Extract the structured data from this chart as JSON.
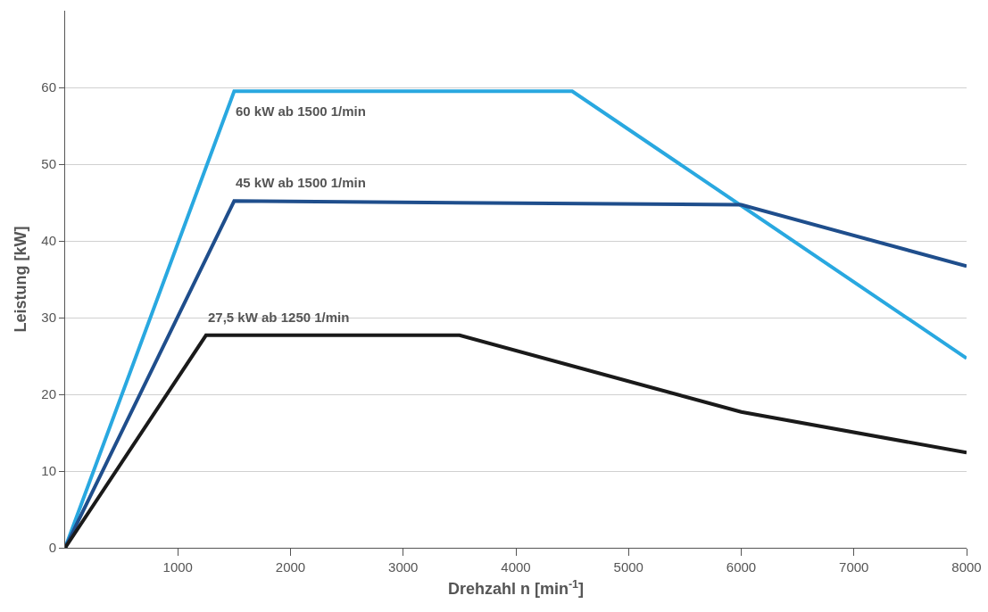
{
  "chart_data": {
    "type": "line",
    "xlabel": "Drehzahl n [min$^{-1}$]",
    "ylabel": "Leistung [kW]",
    "series": [
      {
        "color": "#29a8e0",
        "x": [
          0,
          1500,
          4500,
          8000
        ],
        "values": [
          0,
          59.5,
          59.5,
          24.7
        ]
      },
      {
        "color": "#1f4e8c",
        "x": [
          0,
          1500,
          6000,
          8000
        ],
        "values": [
          0,
          45.2,
          44.7,
          36.7
        ]
      },
      {
        "color": "#1a1a1a",
        "x": [
          0,
          1250,
          3500,
          6000,
          8000
        ],
        "values": [
          0,
          27.7,
          27.7,
          17.7,
          12.4
        ]
      }
    ],
    "annotations": [
      "60 kW ab 1500 1/min",
      "45 kW ab 1500 1/min",
      "27,5 kW ab 1250 1/min"
    ],
    "xlim": [
      0,
      8000
    ],
    "xticks": [
      1000,
      2000,
      3000,
      4000,
      5000,
      6000,
      7000,
      8000
    ],
    "ylim": [
      0,
      70
    ],
    "yticks": [
      0,
      10,
      20,
      30,
      40,
      50,
      60
    ],
    "grid": "y",
    "marker": "none",
    "line_style": "solid"
  }
}
